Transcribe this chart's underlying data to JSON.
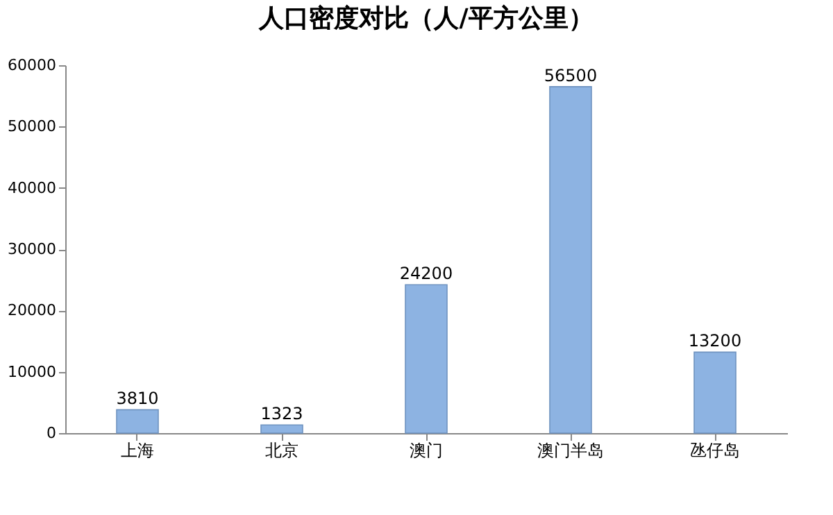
{
  "chart_data": {
    "type": "bar",
    "title": "人口密度对比（人/平方公里）",
    "categories": [
      "上海",
      "北京",
      "澳门",
      "澳门半岛",
      "氹仔岛"
    ],
    "values": [
      3810,
      1323,
      24200,
      56500,
      13200
    ],
    "color": "#8db3e2",
    "ylim": [
      0,
      60000
    ],
    "yticks": [
      0,
      10000,
      20000,
      30000,
      40000,
      50000,
      60000
    ],
    "grid": false,
    "data_labels": true
  }
}
